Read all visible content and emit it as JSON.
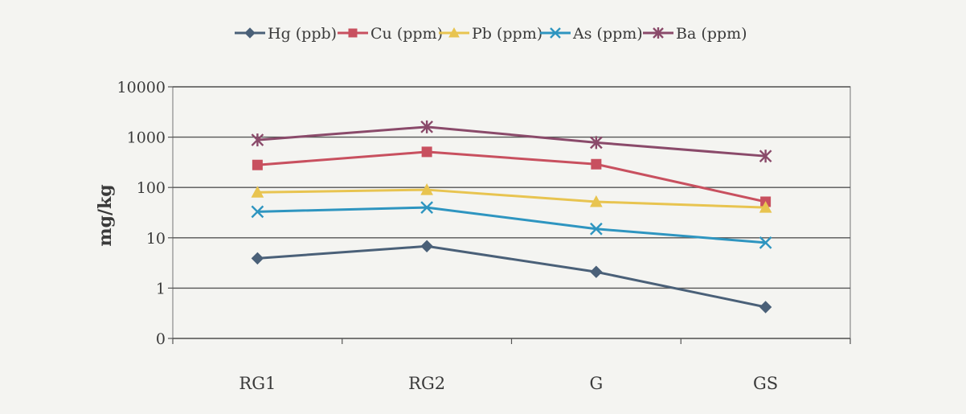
{
  "chart_data": {
    "type": "line",
    "title": "",
    "xlabel": "",
    "ylabel": "mg/kg",
    "y_scale": "log",
    "ylim": [
      0.1,
      10000
    ],
    "y_ticks": [
      0.1,
      1,
      10,
      100,
      1000,
      10000
    ],
    "y_tick_labels": [
      "0",
      "1",
      "10",
      "100",
      "1000",
      "10000"
    ],
    "grid": "horizontal",
    "legend_position": "top",
    "categories": [
      "RG1",
      "RG2",
      "G",
      "GS"
    ],
    "series": [
      {
        "name": "Hg (ppb)",
        "color": "#4a6078",
        "marker": "diamond",
        "values": [
          3.9,
          6.8,
          2.1,
          0.42
        ]
      },
      {
        "name": "Cu (ppm)",
        "color": "#c8505f",
        "marker": "square",
        "values": [
          280,
          510,
          290,
          52
        ]
      },
      {
        "name": "Pb (ppm)",
        "color": "#e8c450",
        "marker": "triangle",
        "values": [
          80,
          90,
          52,
          40
        ]
      },
      {
        "name": "As (ppm)",
        "color": "#2e95c0",
        "marker": "x",
        "values": [
          33,
          40,
          15,
          8
        ]
      },
      {
        "name": "Ba (ppm)",
        "color": "#8a4a6a",
        "marker": "asterisk",
        "values": [
          880,
          1600,
          780,
          420
        ]
      }
    ]
  }
}
